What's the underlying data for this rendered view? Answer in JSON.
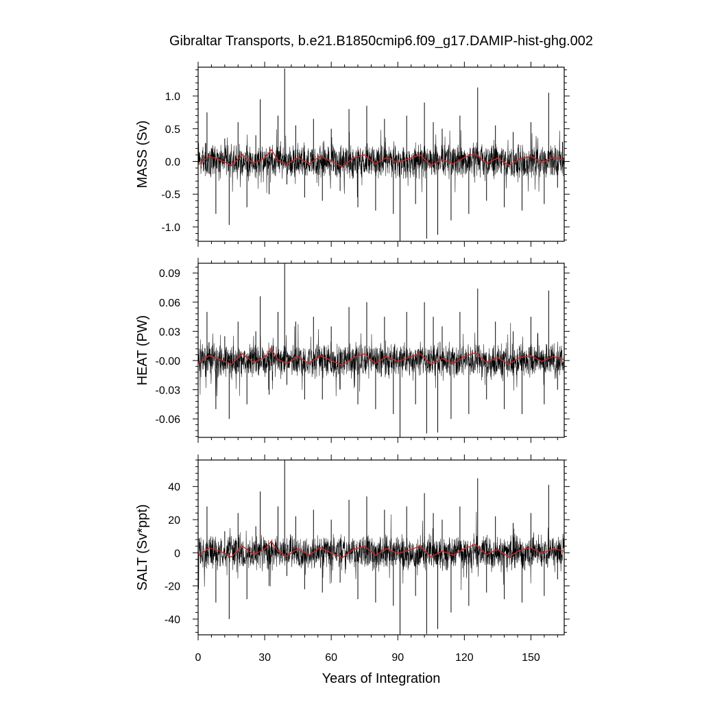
{
  "title": "Gibraltar Transports, b.e21.B1850cmip6.f09_g17.DAMIP-hist-ghg.002",
  "x_axis": {
    "label": "Years of Integration",
    "range": [
      0,
      165
    ],
    "ticks": [
      0,
      30,
      60,
      90,
      120,
      150
    ],
    "tick_labels": [
      "0",
      "30",
      "60",
      "90",
      "120",
      "150"
    ]
  },
  "colors": {
    "raw_series": "#000000",
    "smoothed_series": "#d62728",
    "frame": "#000000"
  },
  "chart_data": [
    {
      "type": "line",
      "ylabel": "MASS (Sv)",
      "xlim": [
        0,
        165
      ],
      "ylim": [
        -1.22,
        1.44
      ],
      "yticks": [
        -1.0,
        -0.5,
        0.0,
        0.5,
        1.0
      ],
      "ytick_labels": [
        "-1.0",
        "-0.5",
        "0.0",
        "0.5",
        "1.0"
      ],
      "series": [
        {
          "style": "raw-monthly",
          "x": [
            0,
            4,
            8,
            12,
            14,
            18,
            22,
            26,
            28,
            32,
            36,
            39,
            40,
            44,
            48,
            52,
            56,
            60,
            64,
            68,
            72,
            76,
            80,
            84,
            88,
            91,
            94,
            98,
            102,
            103,
            106,
            108,
            110,
            114,
            118,
            122,
            126,
            130,
            134,
            138,
            142,
            146,
            150,
            156,
            158,
            162,
            165
          ],
          "values": [
            0.0,
            0.75,
            -0.8,
            0.35,
            -0.97,
            0.6,
            -0.7,
            0.4,
            0.95,
            -0.5,
            0.7,
            1.42,
            -0.35,
            0.55,
            -0.55,
            0.65,
            -0.6,
            0.5,
            -0.45,
            0.8,
            -0.7,
            0.85,
            -0.75,
            0.65,
            -0.8,
            -1.22,
            0.7,
            -0.65,
            0.9,
            -1.18,
            0.6,
            -1.12,
            0.5,
            -0.9,
            0.7,
            -0.8,
            1.13,
            -0.6,
            0.55,
            -0.7,
            0.45,
            -0.75,
            0.6,
            -0.65,
            1.05,
            -0.4,
            0.1
          ]
        },
        {
          "style": "smoothed-annual",
          "x": [
            0,
            5,
            10,
            15,
            20,
            25,
            30,
            33,
            36,
            40,
            45,
            50,
            55,
            60,
            65,
            70,
            75,
            80,
            85,
            90,
            95,
            100,
            105,
            110,
            115,
            120,
            125,
            130,
            135,
            140,
            145,
            150,
            155,
            160,
            165
          ],
          "values": [
            -0.05,
            0.08,
            0.02,
            -0.06,
            0.1,
            -0.03,
            0.05,
            0.18,
            0.02,
            -0.05,
            0.06,
            -0.04,
            0.08,
            0.0,
            -0.08,
            0.05,
            0.1,
            -0.04,
            0.06,
            -0.02,
            0.04,
            0.1,
            -0.06,
            0.03,
            -0.04,
            0.06,
            0.12,
            -0.03,
            0.05,
            -0.06,
            0.04,
            0.08,
            -0.02,
            0.06,
            0.02
          ]
        }
      ]
    },
    {
      "type": "line",
      "ylabel": "HEAT (PW)",
      "xlim": [
        0,
        165
      ],
      "ylim": [
        -0.079,
        0.1
      ],
      "yticks": [
        -0.06,
        -0.03,
        0.0,
        0.03,
        0.06,
        0.09
      ],
      "ytick_labels": [
        "-0.06",
        "-0.03",
        "-0.00",
        "0.03",
        "0.06",
        "0.09"
      ],
      "series": [
        {
          "style": "raw-monthly",
          "x": [
            0,
            4,
            8,
            12,
            14,
            18,
            22,
            26,
            28,
            32,
            36,
            39,
            40,
            44,
            48,
            52,
            56,
            60,
            64,
            68,
            72,
            76,
            80,
            84,
            88,
            91,
            94,
            98,
            102,
            103,
            106,
            108,
            110,
            114,
            118,
            122,
            126,
            130,
            134,
            138,
            142,
            146,
            150,
            156,
            158,
            162,
            165
          ],
          "values": [
            0.0,
            0.05,
            -0.05,
            0.025,
            -0.06,
            0.04,
            -0.045,
            0.03,
            0.066,
            -0.035,
            0.05,
            0.1,
            -0.025,
            0.04,
            -0.04,
            0.045,
            -0.04,
            0.035,
            -0.03,
            0.055,
            -0.045,
            0.06,
            -0.05,
            0.045,
            -0.055,
            -0.079,
            0.05,
            -0.045,
            0.06,
            -0.075,
            0.045,
            -0.074,
            0.035,
            -0.06,
            0.05,
            -0.055,
            0.074,
            -0.04,
            0.04,
            -0.05,
            0.03,
            -0.055,
            0.045,
            -0.045,
            0.072,
            -0.03,
            0.01
          ]
        },
        {
          "style": "smoothed-annual",
          "x": [
            0,
            5,
            10,
            15,
            20,
            25,
            30,
            33,
            36,
            40,
            45,
            50,
            55,
            60,
            65,
            70,
            75,
            80,
            85,
            90,
            95,
            100,
            105,
            110,
            115,
            120,
            125,
            130,
            135,
            140,
            145,
            150,
            155,
            160,
            165
          ],
          "values": [
            -0.003,
            0.005,
            0.001,
            -0.004,
            0.007,
            -0.002,
            0.003,
            0.012,
            0.001,
            -0.003,
            0.004,
            -0.003,
            0.005,
            0.0,
            -0.005,
            0.003,
            0.007,
            -0.003,
            0.004,
            -0.001,
            0.003,
            0.007,
            -0.004,
            0.002,
            -0.003,
            0.004,
            0.008,
            -0.002,
            0.003,
            -0.004,
            0.003,
            0.005,
            -0.001,
            0.004,
            0.001
          ]
        }
      ]
    },
    {
      "type": "line",
      "ylabel": "SALT (Sv*ppt)",
      "xlim": [
        0,
        165
      ],
      "ylim": [
        -49.5,
        56
      ],
      "yticks": [
        -40,
        -20,
        0,
        20,
        40
      ],
      "ytick_labels": [
        "-40",
        "-20",
        "0",
        "20",
        "40"
      ],
      "series": [
        {
          "style": "raw-monthly",
          "x": [
            0,
            4,
            8,
            12,
            14,
            18,
            22,
            26,
            28,
            32,
            36,
            39,
            40,
            44,
            48,
            52,
            56,
            60,
            64,
            68,
            72,
            76,
            80,
            84,
            88,
            91,
            94,
            98,
            102,
            103,
            106,
            108,
            110,
            114,
            118,
            122,
            126,
            130,
            134,
            138,
            142,
            146,
            150,
            156,
            158,
            162,
            165
          ],
          "values": [
            0.0,
            28,
            -30,
            13,
            -40,
            24,
            -28,
            16,
            37,
            -20,
            28,
            56,
            -14,
            22,
            -22,
            26,
            -24,
            20,
            -18,
            32,
            -28,
            34,
            -30,
            26,
            -32,
            -49.5,
            28,
            -26,
            36,
            -49,
            24,
            -46,
            20,
            -36,
            28,
            -32,
            45,
            -24,
            22,
            -28,
            18,
            -30,
            24,
            -26,
            41,
            -16,
            4
          ]
        },
        {
          "style": "smoothed-annual",
          "x": [
            0,
            5,
            10,
            15,
            20,
            25,
            30,
            33,
            36,
            40,
            45,
            50,
            55,
            60,
            65,
            70,
            75,
            80,
            85,
            90,
            95,
            100,
            105,
            110,
            115,
            120,
            125,
            130,
            135,
            140,
            145,
            150,
            155,
            160,
            165
          ],
          "values": [
            -2,
            3,
            1,
            -2.5,
            4,
            -1,
            2,
            7,
            1,
            -2,
            2.5,
            -1.5,
            3,
            0,
            -3,
            2,
            4,
            -1.5,
            2.5,
            -0.5,
            1.5,
            4,
            -2.5,
            1,
            -1.5,
            2.5,
            5,
            -1,
            2,
            -2.5,
            1.5,
            3,
            -0.5,
            2.5,
            1
          ]
        }
      ]
    }
  ]
}
